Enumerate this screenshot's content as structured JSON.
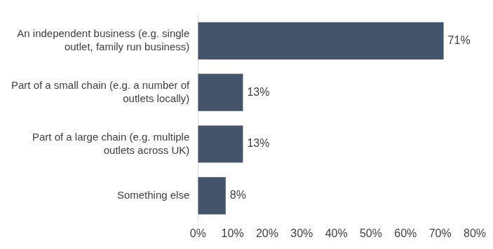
{
  "chart_data": {
    "type": "bar",
    "orientation": "horizontal",
    "categories": [
      [
        "An independent business (e.g. single",
        "outlet, family run business)"
      ],
      [
        "Part of a small chain (e.g. a number of",
        "outlets locally)"
      ],
      [
        "Part of a large chain (e.g. multiple",
        "outlets across UK)"
      ],
      [
        "Something else"
      ]
    ],
    "values": [
      71,
      13,
      13,
      8
    ],
    "value_labels": [
      "71%",
      "13%",
      "13%",
      "8%"
    ],
    "data_labels": true,
    "color": "#44546a",
    "xlim": [
      0,
      80
    ],
    "xticks": [
      {
        "value": 0,
        "label": "0%"
      },
      {
        "value": 10,
        "label": "10%"
      },
      {
        "value": 20,
        "label": "20%"
      },
      {
        "value": 30,
        "label": "30%"
      },
      {
        "value": 40,
        "label": "40%"
      },
      {
        "value": 50,
        "label": "50%"
      },
      {
        "value": 60,
        "label": "60%"
      },
      {
        "value": 70,
        "label": "70%"
      },
      {
        "value": 80,
        "label": "80%"
      }
    ],
    "grid": false
  }
}
